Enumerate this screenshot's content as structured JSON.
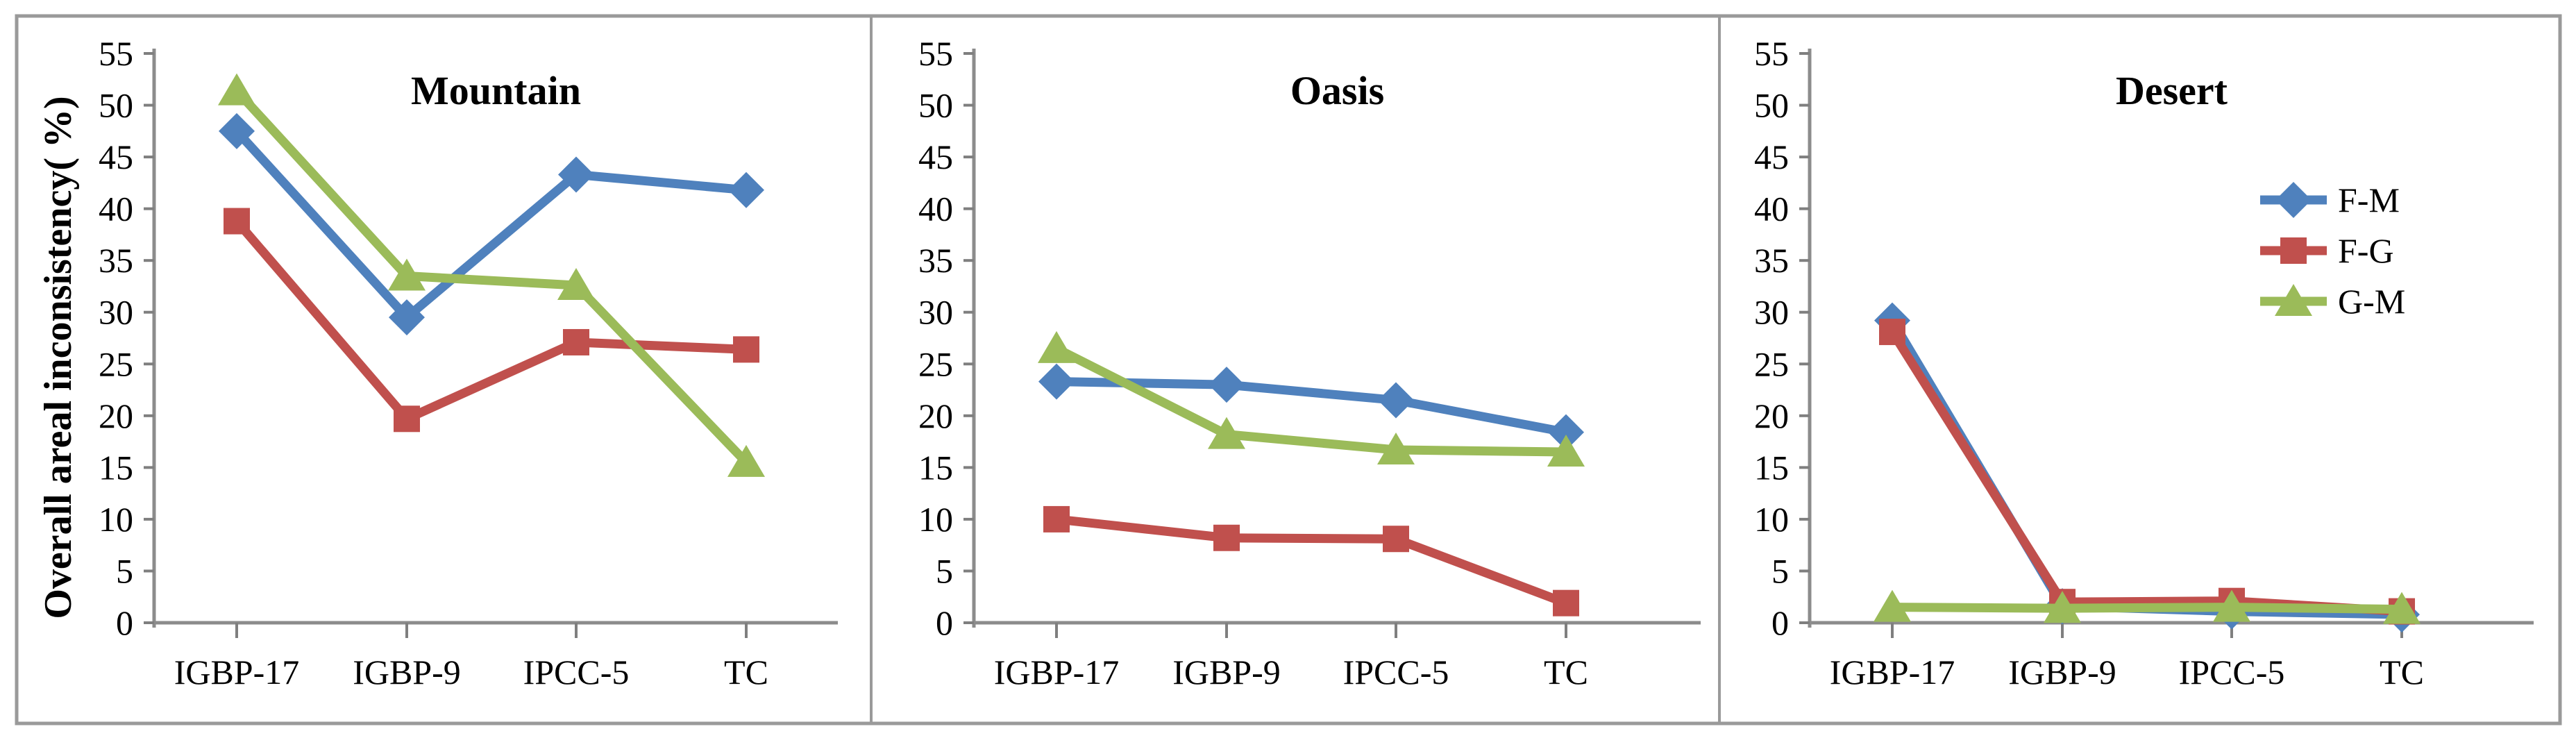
{
  "figure": {
    "background": "#ffffff",
    "border_color": "#9a9a9a",
    "axis_color": "#8c8c8c",
    "tick_color": "#7f7f7f",
    "text_color": "#000000",
    "y_axis_title": "Overall areal inconsistency( %)"
  },
  "legend": {
    "position": "upper-right-of-desert-panel",
    "entries": [
      {
        "label": "F-M",
        "marker": "diamond-icon",
        "color": "#4F81BD"
      },
      {
        "label": "F-G",
        "marker": "square-icon",
        "color": "#C0504D"
      },
      {
        "label": "G-M",
        "marker": "triangle-icon",
        "color": "#9BBB59"
      }
    ]
  },
  "chart_data": [
    {
      "type": "line",
      "title": "Mountain",
      "categories": [
        "IGBP-17",
        "IGBP-9",
        "IPCC-5",
        "TC"
      ],
      "ylabel": "Overall areal inconsistency( %)",
      "xlabel": "",
      "ylim": [
        0,
        55
      ],
      "ytick_step": 5,
      "grid": false,
      "show_legend": false,
      "series": [
        {
          "name": "F-M",
          "marker": "diamond",
          "color": "#4F81BD",
          "values": [
            47.5,
            29.5,
            43.3,
            41.8
          ]
        },
        {
          "name": "F-G",
          "marker": "square",
          "color": "#C0504D",
          "values": [
            38.8,
            19.7,
            27.1,
            26.4
          ]
        },
        {
          "name": "G-M",
          "marker": "triangle",
          "color": "#9BBB59",
          "values": [
            51.4,
            33.5,
            32.6,
            15.5
          ]
        }
      ]
    },
    {
      "type": "line",
      "title": "Oasis",
      "categories": [
        "IGBP-17",
        "IGBP-9",
        "IPCC-5",
        "TC"
      ],
      "ylabel": "",
      "xlabel": "",
      "ylim": [
        0,
        55
      ],
      "ytick_step": 5,
      "grid": false,
      "show_legend": false,
      "series": [
        {
          "name": "F-M",
          "marker": "diamond",
          "color": "#4F81BD",
          "values": [
            23.3,
            23.0,
            21.5,
            18.4
          ]
        },
        {
          "name": "F-G",
          "marker": "square",
          "color": "#C0504D",
          "values": [
            10.0,
            8.2,
            8.1,
            1.9
          ]
        },
        {
          "name": "G-M",
          "marker": "triangle",
          "color": "#9BBB59",
          "values": [
            26.5,
            18.2,
            16.7,
            16.5
          ]
        }
      ]
    },
    {
      "type": "line",
      "title": "Desert",
      "categories": [
        "IGBP-17",
        "IGBP-9",
        "IPCC-5",
        "TC"
      ],
      "ylabel": "",
      "xlabel": "",
      "ylim": [
        0,
        55
      ],
      "ytick_step": 5,
      "grid": false,
      "show_legend": true,
      "legend_position": "upper right",
      "series": [
        {
          "name": "F-M",
          "marker": "diamond",
          "color": "#4F81BD",
          "values": [
            29.2,
            1.6,
            1.1,
            0.8
          ]
        },
        {
          "name": "F-G",
          "marker": "square",
          "color": "#C0504D",
          "values": [
            28.1,
            2.0,
            2.1,
            1.1
          ]
        },
        {
          "name": "G-M",
          "marker": "triangle",
          "color": "#9BBB59",
          "values": [
            1.5,
            1.4,
            1.5,
            1.3
          ]
        }
      ]
    }
  ]
}
